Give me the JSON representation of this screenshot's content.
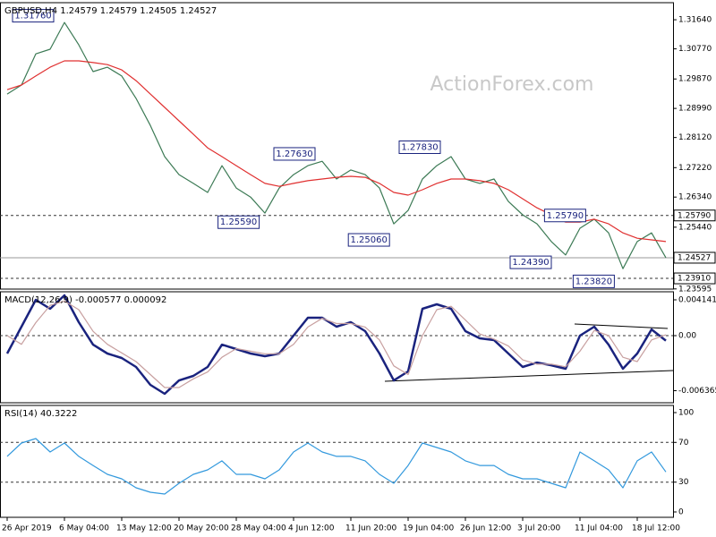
{
  "chart_data": [
    {
      "type": "line",
      "title": "GBPUSD,H4  1.24579 1.24579 1.24505 1.24527",
      "watermark": "ActionForex.com",
      "ylim": [
        1.2359,
        1.3215
      ],
      "yticks": [
        {
          "value": 1.3164,
          "label": "1.31640"
        },
        {
          "value": 1.3077,
          "label": "1.30770"
        },
        {
          "value": 1.2987,
          "label": "1.29870"
        },
        {
          "value": 1.2899,
          "label": "1.28990"
        },
        {
          "value": 1.2812,
          "label": "1.28120"
        },
        {
          "value": 1.2722,
          "label": "1.27220"
        },
        {
          "value": 1.2634,
          "label": "1.26340"
        },
        {
          "value": 1.2544,
          "label": "1.25440"
        },
        {
          "value": 1.23595,
          "label": "1.23595"
        }
      ],
      "series": [
        {
          "color": "#3c7a55",
          "values": [
            1.2942,
            1.2969,
            1.3062,
            1.3076,
            1.3156,
            1.3089,
            1.3009,
            1.3022,
            1.2996,
            1.2929,
            1.2848,
            1.2755,
            1.2701,
            1.2675,
            1.2648,
            1.2728,
            1.2661,
            1.2634,
            1.2586,
            1.2661,
            1.2701,
            1.2728,
            1.2741,
            1.2688,
            1.2715,
            1.2701,
            1.2661,
            1.2554,
            1.2594,
            1.2688,
            1.2728,
            1.2755,
            1.2688,
            1.2675,
            1.2688,
            1.2621,
            1.2581,
            1.2554,
            1.2501,
            1.2461,
            1.2541,
            1.2568,
            1.2527,
            1.242,
            1.2501,
            1.2527,
            1.2453
          ]
        },
        {
          "color": "#e03030",
          "values": [
            1.2955,
            1.2969,
            1.2996,
            1.3022,
            1.3041,
            1.3041,
            1.3036,
            1.303,
            1.3014,
            1.2982,
            1.2942,
            1.2902,
            1.2862,
            1.2822,
            1.2781,
            1.2755,
            1.2728,
            1.2701,
            1.2675,
            1.2666,
            1.2675,
            1.2683,
            1.2688,
            1.2693,
            1.2696,
            1.2693,
            1.2675,
            1.2648,
            1.264,
            1.2656,
            1.2675,
            1.2688,
            1.2688,
            1.2683,
            1.2675,
            1.2656,
            1.2629,
            1.2602,
            1.2581,
            1.2559,
            1.2559,
            1.2568,
            1.2554,
            1.2527,
            1.2511,
            1.2506,
            1.2501
          ]
        }
      ],
      "annotations": [
        {
          "label": "1.31760",
          "value": 1.3176,
          "x": 3.25
        },
        {
          "label": "1.27630",
          "value": 1.2763,
          "x": 21.5
        },
        {
          "label": "1.25590",
          "value": 1.2559,
          "x": 17.6
        },
        {
          "label": "1.25060",
          "value": 1.2506,
          "x": 26.7
        },
        {
          "label": "1.27830",
          "value": 1.2783,
          "x": 30.25
        },
        {
          "label": "1.25790",
          "value": 1.2579,
          "x": 40.4
        },
        {
          "label": "1.24390",
          "value": 1.2439,
          "x": 38
        },
        {
          "label": "1.23820",
          "value": 1.2382,
          "x": 42.4
        }
      ],
      "levels": [
        {
          "label": "1.25790",
          "value": 1.2579,
          "style": "dashed"
        },
        {
          "label": "1.24527",
          "value": 1.24527,
          "style": "solid"
        },
        {
          "label": "1.23910",
          "value": 1.2391,
          "style": "dashed"
        }
      ]
    },
    {
      "type": "line",
      "title": "MACD(12,26,9) -0.000577 0.000092",
      "ylim": [
        -0.00776,
        0.005073
      ],
      "yticks": [
        0.004141,
        {
          "value": 0,
          "label": "0.00"
        },
        -0.006365
      ],
      "levels": [
        0
      ],
      "series": [
        {
          "color": "#1a237e",
          "values": [
            -0.00207,
            0.00104,
            0.00414,
            0.00311,
            0.00466,
            0.00155,
            -0.00104,
            -0.00207,
            -0.00259,
            -0.00362,
            -0.00569,
            -0.00673,
            -0.00518,
            -0.00466,
            -0.00362,
            -0.00104,
            -0.00155,
            -0.00207,
            -0.00238,
            -0.00207,
            0,
            0.00207,
            0.00207,
            0.00104,
            0.00155,
            0.00052,
            -0.00207,
            -0.00518,
            -0.00414,
            0.00311,
            0.00362,
            0.00311,
            0.00052,
            -0.00031,
            -0.00052,
            -0.00207,
            -0.00362,
            -0.00311,
            -0.00342,
            -0.00383,
            0,
            0.00104,
            -0.00104,
            -0.00383,
            -0.00207,
            0.00072,
            -0.00058
          ]
        },
        {
          "color": "#c8a0a0",
          "values": [
            0,
            -0.001,
            0.0015,
            0.0035,
            0.004,
            0.003,
            0.0005,
            -0.001,
            -0.002,
            -0.003,
            -0.0045,
            -0.006,
            -0.006,
            -0.005,
            -0.0042,
            -0.0025,
            -0.0015,
            -0.0018,
            -0.0021,
            -0.0021,
            -0.001,
            0.001,
            0.002,
            0.0014,
            0.0014,
            0.001,
            -0.0005,
            -0.0035,
            -0.0045,
            0,
            0.003,
            0.0034,
            0.0018,
            0.0002,
            -0.0004,
            -0.0012,
            -0.0028,
            -0.0033,
            -0.0033,
            -0.0036,
            -0.0018,
            0.0006,
            0,
            -0.0025,
            -0.003,
            -0.0005,
            0.0001
          ]
        }
      ]
    },
    {
      "type": "line",
      "title": "RSI(14) 40.3222",
      "ylim": [
        -5.4,
        107.2
      ],
      "yticks": [
        100,
        70,
        30,
        0
      ],
      "levels": [
        70,
        30
      ],
      "categories": [
        "26 Apr 2019",
        null,
        null,
        null,
        "6 May 04:00",
        null,
        null,
        null,
        "13 May 12:00",
        null,
        null,
        null,
        "20 May 20:00",
        null,
        null,
        null,
        "28 May 04:00",
        null,
        null,
        null,
        "4 Jun 12:00",
        null,
        null,
        null,
        "11 Jun 20:00",
        null,
        null,
        null,
        "19 Jun 04:00",
        null,
        null,
        null,
        "26 Jun 12:00",
        null,
        null,
        null,
        "3 Jul 20:00",
        null,
        null,
        null,
        "11 Jul 04:00",
        null,
        null,
        null,
        "18 Jul 12:00",
        null,
        null
      ],
      "series": [
        {
          "color": "#3399dd",
          "values": [
            55.9,
            69.4,
            73.9,
            60.4,
            69.4,
            55.9,
            46.8,
            37.8,
            33.3,
            24.3,
            19.8,
            18.0,
            28.8,
            37.8,
            42.3,
            51.4,
            37.8,
            37.8,
            33.3,
            42.3,
            60.4,
            69.4,
            60.4,
            55.9,
            55.9,
            51.4,
            37.8,
            28.8,
            46.8,
            69.4,
            64.9,
            60.4,
            51.4,
            46.8,
            46.8,
            37.8,
            33.3,
            33.3,
            28.8,
            24.3,
            60.4,
            51.4,
            42.3,
            24.3,
            51.4,
            60.4,
            40.3
          ]
        }
      ]
    }
  ]
}
